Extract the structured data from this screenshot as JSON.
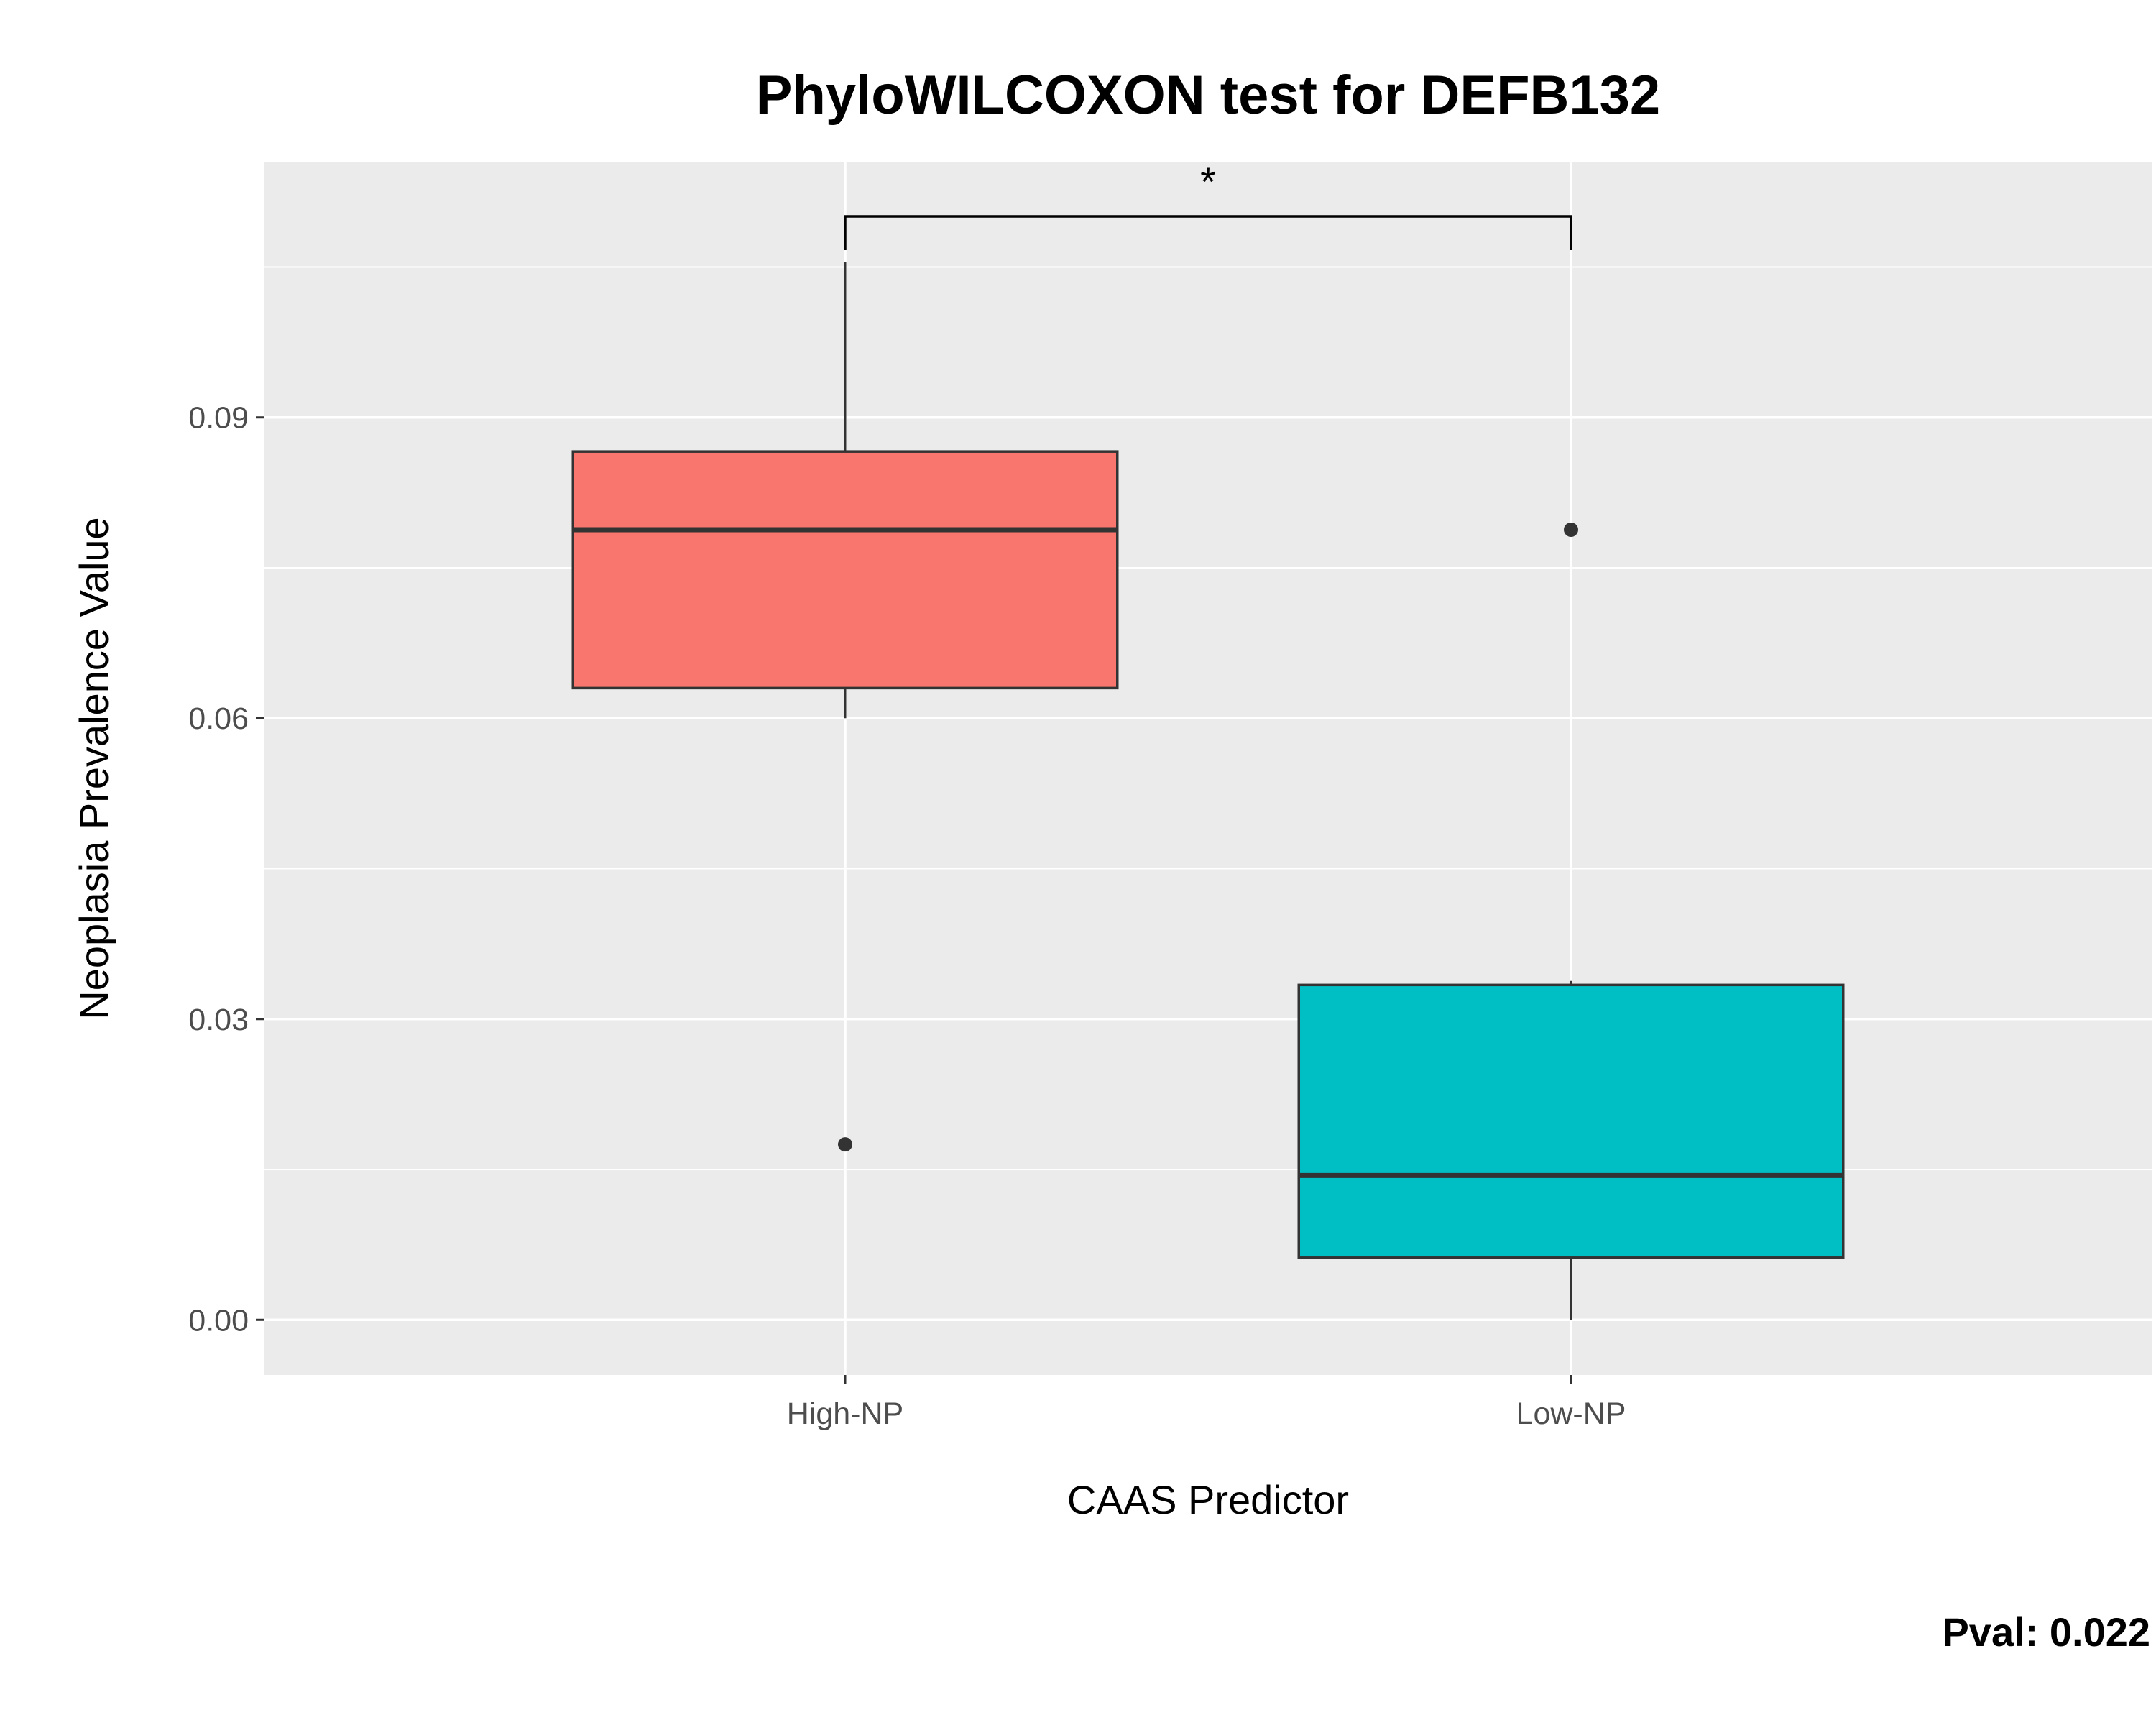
{
  "chart_data": {
    "type": "box",
    "title": "PhyloWILCOXON test for DEFB132",
    "xlabel": "CAAS Predictor",
    "ylabel": "Neoplasia Prevalence Value",
    "ylim": [
      -0.0055,
      0.1155
    ],
    "yticks": [
      0.0,
      0.03,
      0.06,
      0.09
    ],
    "ytick_labels": [
      "0.00",
      "0.03",
      "0.06",
      "0.09"
    ],
    "categories": [
      "High-NP",
      "Low-NP"
    ],
    "boxes": [
      {
        "category": "High-NP",
        "color": "#F8766D",
        "lower_whisker": 0.06,
        "q1": 0.063,
        "median": 0.0788,
        "q3": 0.0866,
        "upper_whisker": 0.1055,
        "outliers": [
          0.0175
        ]
      },
      {
        "category": "Low-NP",
        "color": "#00BFC4",
        "lower_whisker": 0.0,
        "q1": 0.0062,
        "median": 0.0144,
        "q3": 0.0334,
        "upper_whisker": 0.0338,
        "outliers": [
          0.0788
        ]
      }
    ],
    "grid": true,
    "legend": "none",
    "panel_background": "#EBEBEB",
    "comparison": {
      "groups": [
        "High-NP",
        "Low-NP"
      ],
      "label": "*"
    },
    "pval_label": "Pval:  0.022"
  }
}
